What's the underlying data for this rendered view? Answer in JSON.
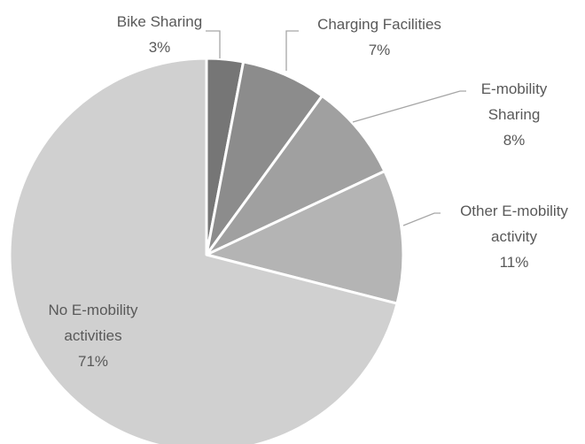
{
  "chart_data": {
    "type": "pie",
    "categories": [
      "Bike Sharing",
      "Charging Facilities",
      "E-mobility Sharing",
      "Other E-mobility activity",
      "No E-mobility activities"
    ],
    "values": [
      3,
      7,
      8,
      11,
      71
    ],
    "value_labels": [
      "3%",
      "7%",
      "8%",
      "11%",
      "71%"
    ],
    "colors": [
      "#767676",
      "#8c8c8c",
      "#a0a0a0",
      "#b4b4b4",
      "#d0d0d0"
    ]
  }
}
